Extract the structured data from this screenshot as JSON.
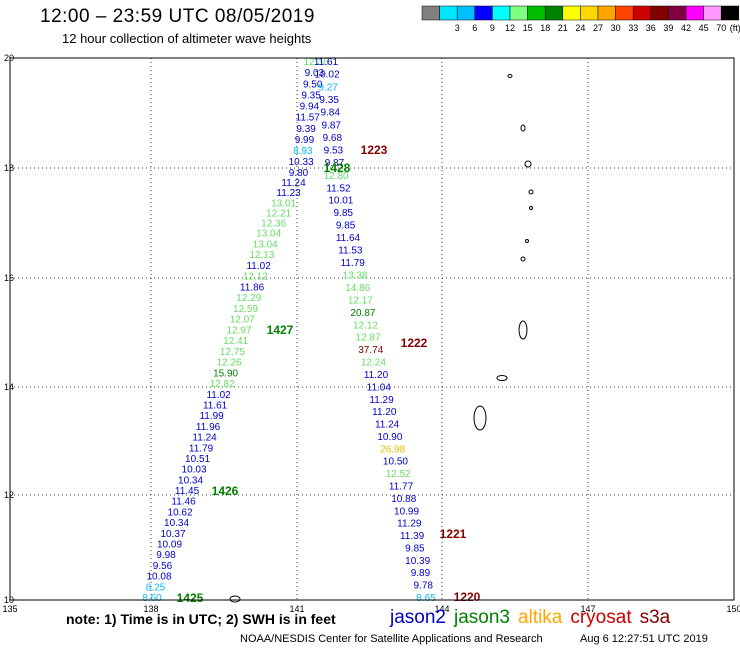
{
  "title": "12:00 – 23:59 UTC 08/05/2019",
  "subtitle": "12 hour collection of altimeter wave heights",
  "legend": {
    "unit": "(ft)",
    "colors": [
      "#808080",
      "#00e5ff",
      "#00bfff",
      "#0000ff",
      "#00ffff",
      "#7fff7f",
      "#00bf00",
      "#008000",
      "#ffff00",
      "#ffd700",
      "#ffa500",
      "#ff4500",
      "#cc0000",
      "#800000",
      "#800040",
      "#ff00ff",
      "#ff99ff",
      "#000000"
    ],
    "labels": [
      "3",
      "6",
      "9",
      "12",
      "15",
      "18",
      "21",
      "24",
      "27",
      "30",
      "33",
      "36",
      "39",
      "42",
      "45",
      "70"
    ]
  },
  "axes": {
    "x_ticks": [
      "135",
      "138",
      "141",
      "144",
      "147",
      "150"
    ],
    "y_ticks": [
      "20",
      "18",
      "16",
      "14",
      "12",
      "10"
    ]
  },
  "passes": [
    {
      "id": "1223",
      "color": "#800000"
    },
    {
      "id": "1428",
      "color": "#008000"
    },
    {
      "id": "1427",
      "color": "#008000"
    },
    {
      "id": "1222",
      "color": "#800000"
    },
    {
      "id": "1426",
      "color": "#008000"
    },
    {
      "id": "1221",
      "color": "#800000"
    },
    {
      "id": "1425",
      "color": "#008000"
    },
    {
      "id": "1220",
      "color": "#800000"
    }
  ],
  "tracks": [
    {
      "name": "1425-1428",
      "points": [
        {
          "v": "8.60",
          "c": "#00bfff"
        },
        {
          "v": "8.25",
          "c": "#00bfff"
        },
        {
          "v": "10.08",
          "c": "#0000cc"
        },
        {
          "v": "9.56",
          "c": "#0000cc"
        },
        {
          "v": "9.98",
          "c": "#0000cc"
        },
        {
          "v": "10.09",
          "c": "#0000cc"
        },
        {
          "v": "10.37",
          "c": "#0000cc"
        },
        {
          "v": "10.34",
          "c": "#0000cc"
        },
        {
          "v": "10.62",
          "c": "#0000cc"
        },
        {
          "v": "11.46",
          "c": "#0000cc"
        },
        {
          "v": "11.45",
          "c": "#0000cc"
        },
        {
          "v": "10.34",
          "c": "#0000cc"
        },
        {
          "v": "10.03",
          "c": "#0000cc"
        },
        {
          "v": "10.51",
          "c": "#0000cc"
        },
        {
          "v": "11.79",
          "c": "#0000cc"
        },
        {
          "v": "11.24",
          "c": "#0000cc"
        },
        {
          "v": "11.96",
          "c": "#0000cc"
        },
        {
          "v": "11.99",
          "c": "#0000cc"
        },
        {
          "v": "11.61",
          "c": "#0000cc"
        },
        {
          "v": "11.02",
          "c": "#0000cc"
        },
        {
          "v": "12.82",
          "c": "#66dd66"
        },
        {
          "v": "15.90",
          "c": "#008000"
        },
        {
          "v": "12.26",
          "c": "#66dd66"
        },
        {
          "v": "12.75",
          "c": "#66dd66"
        },
        {
          "v": "12.41",
          "c": "#66dd66"
        },
        {
          "v": "12.97",
          "c": "#66dd66"
        },
        {
          "v": "12.07",
          "c": "#66dd66"
        },
        {
          "v": "12.59",
          "c": "#66dd66"
        },
        {
          "v": "12.29",
          "c": "#66dd66"
        },
        {
          "v": "11.86",
          "c": "#0000cc"
        },
        {
          "v": "12.12",
          "c": "#66dd66"
        },
        {
          "v": "11.02",
          "c": "#0000cc"
        },
        {
          "v": "12.13",
          "c": "#66dd66"
        },
        {
          "v": "13.04",
          "c": "#66dd66"
        },
        {
          "v": "13.04",
          "c": "#66dd66"
        },
        {
          "v": "12.36",
          "c": "#66dd66"
        },
        {
          "v": "12.21",
          "c": "#66dd66"
        },
        {
          "v": "13.01",
          "c": "#66dd66"
        },
        {
          "v": "11.23",
          "c": "#0000cc"
        },
        {
          "v": "11.24",
          "c": "#0000cc"
        },
        {
          "v": "9.80",
          "c": "#0000cc"
        },
        {
          "v": "10.33",
          "c": "#0000cc"
        },
        {
          "v": "8.93",
          "c": "#00bfff"
        },
        {
          "v": "9.99",
          "c": "#0000cc"
        },
        {
          "v": "9.39",
          "c": "#0000cc"
        },
        {
          "v": "11.57",
          "c": "#0000cc"
        },
        {
          "v": "9.94",
          "c": "#0000cc"
        },
        {
          "v": "9.35",
          "c": "#0000cc"
        },
        {
          "v": "9.50",
          "c": "#0000cc"
        },
        {
          "v": "9.03",
          "c": "#0000cc"
        },
        {
          "v": "12.36",
          "c": "#66dd66"
        }
      ]
    },
    {
      "name": "1220-1223",
      "points": [
        {
          "v": "8.65",
          "c": "#00bfff"
        },
        {
          "v": "9.78",
          "c": "#0000cc"
        },
        {
          "v": "9.89",
          "c": "#0000cc"
        },
        {
          "v": "10.39",
          "c": "#0000cc"
        },
        {
          "v": "9.85",
          "c": "#0000cc"
        },
        {
          "v": "11.39",
          "c": "#0000cc"
        },
        {
          "v": "11.29",
          "c": "#0000cc"
        },
        {
          "v": "10.99",
          "c": "#0000cc"
        },
        {
          "v": "10.88",
          "c": "#0000cc"
        },
        {
          "v": "11.77",
          "c": "#0000cc"
        },
        {
          "v": "12.52",
          "c": "#66dd66"
        },
        {
          "v": "10.50",
          "c": "#0000cc"
        },
        {
          "v": "26.98",
          "c": "#e6c000"
        },
        {
          "v": "10.90",
          "c": "#0000cc"
        },
        {
          "v": "11.24",
          "c": "#0000cc"
        },
        {
          "v": "11.20",
          "c": "#0000cc"
        },
        {
          "v": "11.29",
          "c": "#0000cc"
        },
        {
          "v": "11.04",
          "c": "#0000cc"
        },
        {
          "v": "11.20",
          "c": "#0000cc"
        },
        {
          "v": "12.24",
          "c": "#66dd66"
        },
        {
          "v": "37.74",
          "c": "#800000"
        },
        {
          "v": "12.87",
          "c": "#66dd66"
        },
        {
          "v": "12.12",
          "c": "#66dd66"
        },
        {
          "v": "20.87",
          "c": "#008000"
        },
        {
          "v": "12.17",
          "c": "#66dd66"
        },
        {
          "v": "14.86",
          "c": "#66dd66"
        },
        {
          "v": "13.38",
          "c": "#66dd66"
        },
        {
          "v": "11.79",
          "c": "#0000cc"
        },
        {
          "v": "11.53",
          "c": "#0000cc"
        },
        {
          "v": "11.64",
          "c": "#0000cc"
        },
        {
          "v": "9.85",
          "c": "#0000cc"
        },
        {
          "v": "9.85",
          "c": "#0000cc"
        },
        {
          "v": "10.01",
          "c": "#0000cc"
        },
        {
          "v": "11.52",
          "c": "#0000cc"
        },
        {
          "v": "12.80",
          "c": "#66dd66"
        },
        {
          "v": "9.87",
          "c": "#0000cc"
        },
        {
          "v": "9.53",
          "c": "#0000cc"
        },
        {
          "v": "9.68",
          "c": "#0000cc"
        },
        {
          "v": "9.87",
          "c": "#0000cc"
        },
        {
          "v": "9.84",
          "c": "#0000cc"
        },
        {
          "v": "9.35",
          "c": "#0000cc"
        },
        {
          "v": "9.27",
          "c": "#00bfff"
        },
        {
          "v": "10.02",
          "c": "#0000cc"
        },
        {
          "v": "11.61",
          "c": "#0000cc"
        }
      ]
    }
  ],
  "note": "note: 1) Time is in UTC; 2) SWH is in feet",
  "satellites": [
    {
      "name": "jason2",
      "color": "#0000cc"
    },
    {
      "name": "jason3",
      "color": "#008000"
    },
    {
      "name": "altika",
      "color": "#ffa500"
    },
    {
      "name": "cryosat",
      "color": "#cc0000"
    },
    {
      "name": "s3a",
      "color": "#800000"
    }
  ],
  "credit": "NOAA/NESDIS Center for Satellite Applications and Research",
  "timestamp": "Aug  6 12:27:51 UTC 2019"
}
